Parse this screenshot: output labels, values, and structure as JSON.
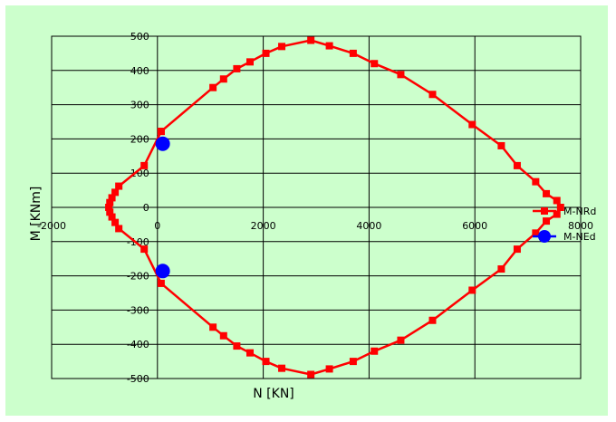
{
  "chart_data": {
    "type": "scatter",
    "xlabel": "N [KN]",
    "ylabel": "M [KNm]",
    "xlim": [
      -2000,
      8000
    ],
    "ylim": [
      -500,
      500
    ],
    "x_ticks": [
      -2000,
      0,
      2000,
      4000,
      6000,
      8000
    ],
    "y_ticks": [
      -500,
      -400,
      -300,
      -200,
      -100,
      0,
      100,
      200,
      300,
      400,
      500
    ],
    "grid": true,
    "legend_position": "right",
    "colors": {
      "plot_background": "#ccffcc",
      "series_1": "#ff0000",
      "series_2": "#0000ff"
    },
    "series": [
      {
        "name": "M-NRd",
        "marker": "square",
        "color": "#ff0000",
        "points": [
          [
            70,
            222
          ],
          [
            -250,
            122
          ],
          [
            -730,
            62
          ],
          [
            -800,
            44
          ],
          [
            -860,
            28
          ],
          [
            -900,
            14
          ],
          [
            -920,
            0
          ],
          [
            -900,
            -14
          ],
          [
            -860,
            -28
          ],
          [
            -800,
            -44
          ],
          [
            -730,
            -62
          ],
          [
            -250,
            -122
          ],
          [
            70,
            -222
          ],
          [
            1050,
            -350
          ],
          [
            1250,
            -375
          ],
          [
            1500,
            -405
          ],
          [
            1750,
            -425
          ],
          [
            2050,
            -450
          ],
          [
            2350,
            -470
          ],
          [
            2900,
            -488
          ],
          [
            3250,
            -472
          ],
          [
            3700,
            -450
          ],
          [
            4100,
            -420
          ],
          [
            4600,
            -388
          ],
          [
            5200,
            -330
          ],
          [
            5950,
            -242
          ],
          [
            6500,
            -180
          ],
          [
            6800,
            -122
          ],
          [
            7150,
            -75
          ],
          [
            7350,
            -40
          ],
          [
            7550,
            -20
          ],
          [
            7620,
            0
          ],
          [
            7550,
            20
          ],
          [
            7350,
            40
          ],
          [
            7150,
            75
          ],
          [
            6800,
            122
          ],
          [
            6500,
            180
          ],
          [
            5950,
            242
          ],
          [
            5200,
            330
          ],
          [
            4600,
            388
          ],
          [
            4100,
            420
          ],
          [
            3700,
            450
          ],
          [
            3250,
            472
          ],
          [
            2900,
            488
          ],
          [
            2350,
            470
          ],
          [
            2050,
            450
          ],
          [
            1750,
            425
          ],
          [
            1500,
            405
          ],
          [
            1250,
            375
          ],
          [
            1050,
            350
          ],
          [
            70,
            222
          ]
        ]
      },
      {
        "name": "M-NEd",
        "marker": "circle",
        "color": "#0000ff",
        "points": [
          [
            100,
            186
          ],
          [
            100,
            -186
          ]
        ]
      }
    ]
  }
}
